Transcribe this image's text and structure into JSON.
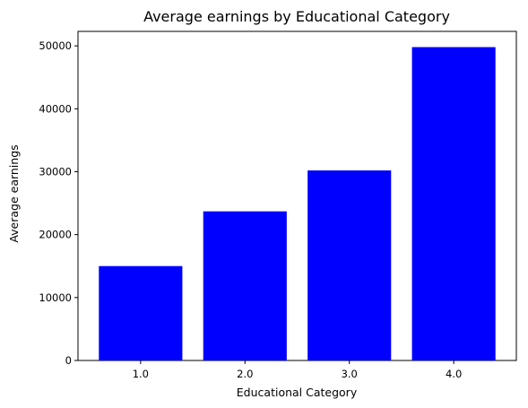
{
  "chart_data": {
    "type": "bar",
    "title": "Average earnings by Educational Category",
    "xlabel": "Educational Category",
    "ylabel": "Average earnings",
    "categories": [
      "1.0",
      "2.0",
      "3.0",
      "4.0"
    ],
    "values": [
      15000,
      23700,
      30200,
      49800
    ],
    "ylim": [
      0,
      52300
    ],
    "yticks": [
      0,
      10000,
      20000,
      30000,
      40000,
      50000
    ],
    "bar_color": "#0000ff",
    "grid": false,
    "legend": false
  }
}
